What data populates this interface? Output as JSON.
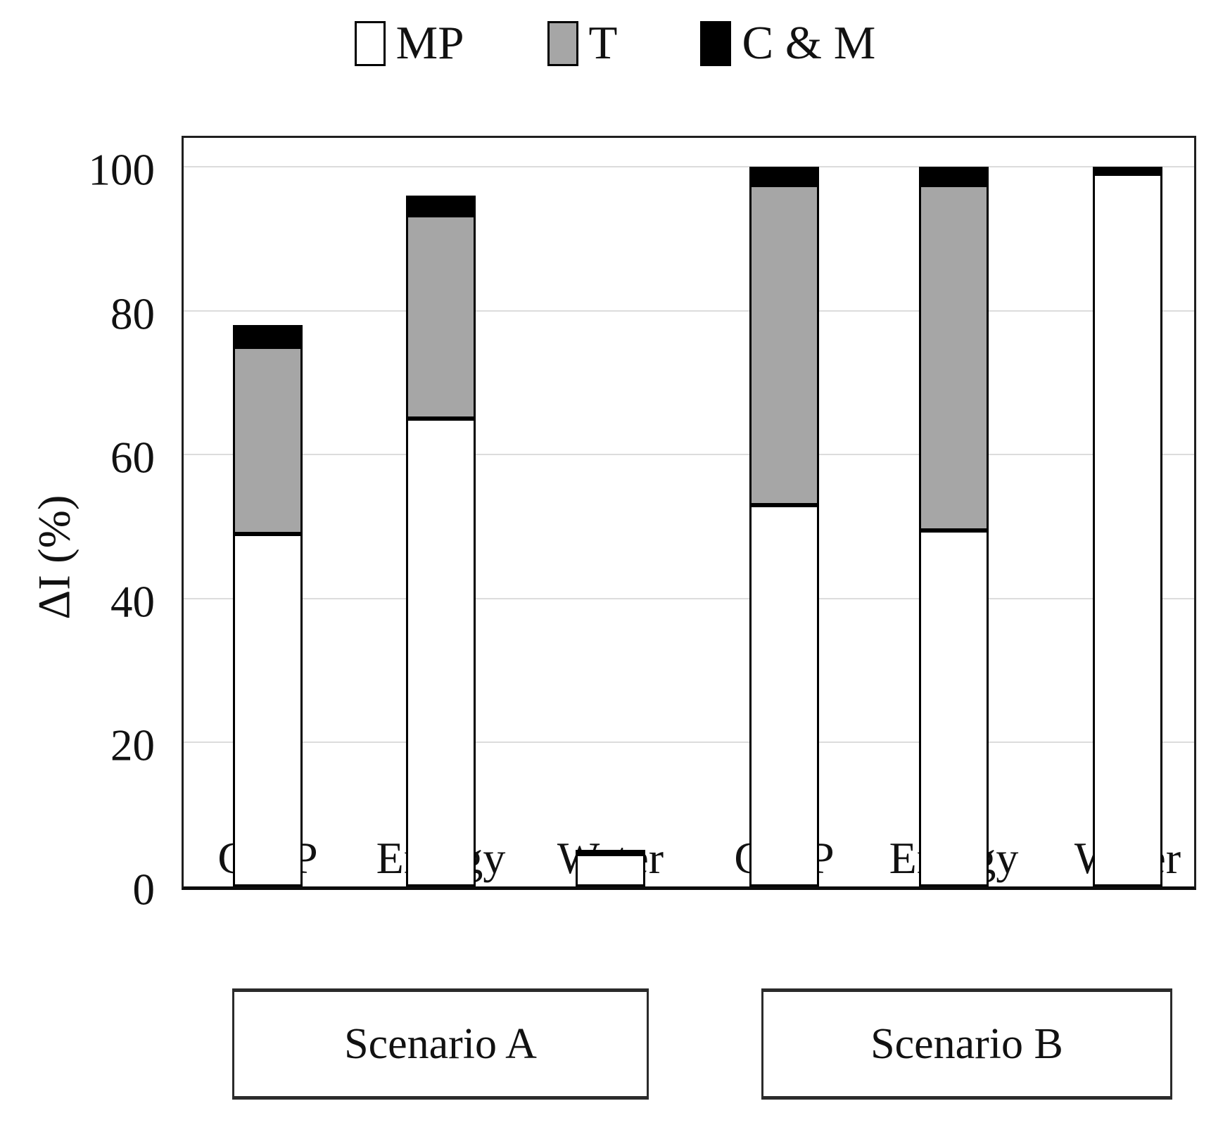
{
  "chart_data": {
    "type": "bar",
    "stacked": true,
    "title": "",
    "ylabel": "ΔI (%)",
    "xlabel": "",
    "categories": [
      "GWP",
      "Energy",
      "Water",
      "GWP",
      "Energy",
      "Water"
    ],
    "group_labels": [
      "Scenario A",
      "Scenario B"
    ],
    "series": [
      {
        "name": "MP",
        "color": "#ffffff",
        "values": [
          49,
          65,
          4.5,
          53,
          49.5,
          99
        ]
      },
      {
        "name": "T",
        "color": "#a6a6a6",
        "values": [
          26,
          28.3,
          0,
          44.5,
          48,
          0
        ]
      },
      {
        "name": "C & M",
        "color": "#000000",
        "values": [
          3,
          2.7,
          0.5,
          2.5,
          2.5,
          1
        ]
      }
    ],
    "totals": [
      78,
      96,
      5,
      100,
      100,
      100
    ],
    "yticks": [
      0,
      20,
      40,
      60,
      80,
      100
    ],
    "ylim": [
      0,
      104
    ],
    "grid": "horizontal",
    "gridline_color": "#dcdcdc",
    "legend_position": "top",
    "legend_entries": [
      "MP",
      "T",
      "C & M"
    ]
  }
}
